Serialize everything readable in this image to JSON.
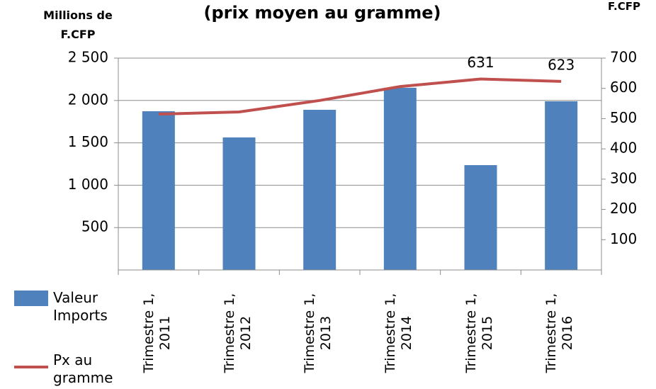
{
  "chart_data": {
    "type": "bar_line",
    "title": "(prix moyen au gramme)",
    "y_label": "Millions de F.CFP",
    "y2_label": "F.CFP",
    "categories": [
      "Trimestre 1, 2011",
      "Trimestre 1, 2012",
      "Trimestre 1, 2013",
      "Trimestre 1, 2014",
      "Trimestre 1, 2015",
      "Trimestre 1, 2016"
    ],
    "series": [
      {
        "name": "Valeur Imports",
        "type": "bar",
        "color": "#4f81bd",
        "values": [
          1873,
          1564,
          1890,
          2150,
          1237,
          1990
        ]
      },
      {
        "name": "Px au gramme",
        "type": "line",
        "axis": "y2",
        "color": "#c0504d",
        "values": [
          515,
          522,
          560,
          606,
          631,
          623
        ],
        "value_labels": [
          null,
          null,
          null,
          null,
          "631",
          "623"
        ]
      }
    ],
    "ylim": [
      0,
      2500
    ],
    "yticks": [
      {
        "value": 500,
        "label": "500"
      },
      {
        "value": 1000,
        "label": "1 000"
      },
      {
        "value": 1500,
        "label": "1 500"
      },
      {
        "value": 2000,
        "label": "2 000"
      },
      {
        "value": 2500,
        "label": "2 500"
      }
    ],
    "y2lim": [
      0,
      700
    ],
    "y2ticks": [
      100,
      200,
      300,
      400,
      500,
      600,
      700
    ],
    "grid": true,
    "legend": "left"
  }
}
